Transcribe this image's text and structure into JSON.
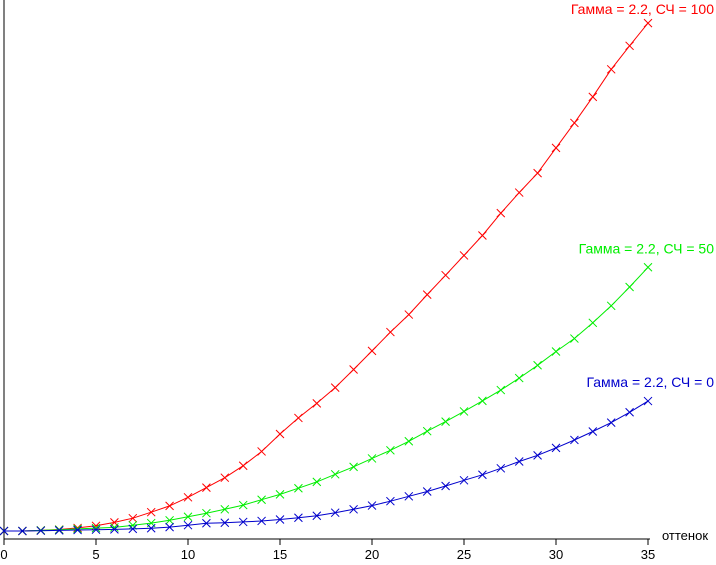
{
  "chart_data": {
    "type": "line",
    "xlabel": "оттенок",
    "ylabel": "",
    "xlim": [
      0,
      35
    ],
    "x_ticks": [
      "0",
      "5",
      "10",
      "15",
      "20",
      "25",
      "30",
      "35"
    ],
    "grid": false,
    "x": [
      0,
      1,
      2,
      3,
      4,
      5,
      6,
      7,
      8,
      9,
      10,
      11,
      12,
      13,
      14,
      15,
      16,
      17,
      18,
      19,
      20,
      21,
      22,
      23,
      24,
      25,
      26,
      27,
      28,
      29,
      30,
      31,
      32,
      33,
      34,
      35
    ],
    "series": [
      {
        "name": "Гамма = 2.2, СЧ = 100",
        "color": "#ff0000",
        "values": [
          0,
          0,
          0.4,
          0.9,
          1.9,
          3.2,
          5.3,
          7.9,
          11.6,
          15.5,
          20.8,
          26.8,
          32.9,
          40.3,
          49.1,
          59.9,
          69.8,
          78.8,
          88.5,
          99.7,
          111.2,
          122.8,
          133.6,
          145.9,
          157.9,
          170.1,
          182.4,
          196.2,
          208.9,
          220.9,
          236.5,
          251.9,
          268,
          285,
          299.5,
          313.5
        ]
      },
      {
        "name": "Гамма = 2.2, СЧ = 50",
        "color": "#00ee00",
        "values": [
          0,
          0,
          0.4,
          0.8,
          1.3,
          1.8,
          2.2,
          3.5,
          4.9,
          6.6,
          8.8,
          11,
          13.4,
          16,
          19.3,
          22.6,
          26.4,
          30.3,
          35,
          39.6,
          44.8,
          49.8,
          55.4,
          61.6,
          67.5,
          73.8,
          80.3,
          87,
          94.4,
          102.3,
          110.8,
          118.8,
          128.5,
          139,
          150.6,
          162.8
        ]
      },
      {
        "name": "Гамма = 2.2, СЧ = 0",
        "color": "#0000cc",
        "values": [
          0,
          0,
          0.2,
          0.4,
          0.6,
          0.8,
          1,
          1.3,
          1.7,
          2.4,
          3.6,
          4.8,
          5.1,
          5.6,
          6.2,
          7.1,
          8.2,
          9.4,
          11.3,
          13.4,
          15.7,
          18.4,
          21.4,
          24.4,
          27.8,
          31.3,
          34.7,
          38.7,
          42.9,
          46.7,
          51.3,
          56.2,
          61.4,
          66.9,
          73.3,
          80.2
        ]
      }
    ]
  }
}
